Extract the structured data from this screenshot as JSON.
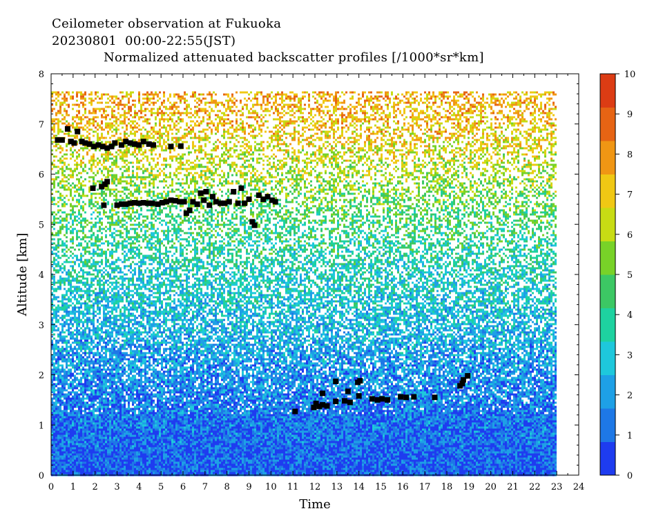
{
  "header": {
    "line1": "Ceilometer observation at Fukuoka",
    "line2": "20230801  00:00-22:55(JST)",
    "line3": "Normalized attenuated backscatter profiles [/1000*sr*km]"
  },
  "chart_data": {
    "type": "heatmap",
    "title": "Normalized attenuated backscatter profiles [/1000*sr*km]",
    "xlabel": "Time",
    "ylabel": "Altitude [km]",
    "xlim": [
      0,
      24
    ],
    "ylim": [
      0,
      8
    ],
    "x_ticks": [
      "0",
      "1",
      "2",
      "3",
      "4",
      "5",
      "6",
      "7",
      "8",
      "9",
      "10",
      "11",
      "12",
      "13",
      "14",
      "15",
      "16",
      "17",
      "18",
      "19",
      "20",
      "21",
      "22",
      "23",
      "24"
    ],
    "y_ticks": [
      "0",
      "1",
      "2",
      "3",
      "4",
      "5",
      "6",
      "7",
      "8"
    ],
    "data_coverage": {
      "time_end": 22.92,
      "altitude_top": 7.65
    },
    "colorbar": {
      "range": [
        0,
        10
      ],
      "ticks": [
        "0",
        "1",
        "2",
        "3",
        "4",
        "5",
        "6",
        "7",
        "8",
        "9",
        "10"
      ],
      "colors": [
        "#1e3cf0",
        "#1e78e6",
        "#1ea0e6",
        "#1ec8dc",
        "#1ed2a0",
        "#3cc864",
        "#78d228",
        "#c8dc14",
        "#f0c814",
        "#f09614",
        "#e66414",
        "#dc3c14"
      ]
    },
    "background_profile": {
      "altitude_km": [
        0.0,
        0.5,
        1.0,
        1.5,
        2.0,
        2.5,
        3.0,
        3.5,
        4.0,
        4.5,
        5.0,
        5.5,
        6.0,
        6.5,
        7.0,
        7.5
      ],
      "mean_value": [
        0.8,
        1.0,
        1.2,
        1.5,
        1.8,
        2.1,
        2.5,
        2.9,
        3.3,
        3.8,
        4.3,
        5.0,
        5.8,
        6.5,
        7.2,
        7.6
      ]
    },
    "cloud_base_points": [
      {
        "x": 0.3,
        "y": 6.68
      },
      {
        "x": 0.5,
        "y": 6.68
      },
      {
        "x": 0.75,
        "y": 6.9
      },
      {
        "x": 0.9,
        "y": 6.65
      },
      {
        "x": 1.05,
        "y": 6.62
      },
      {
        "x": 1.2,
        "y": 6.85
      },
      {
        "x": 1.4,
        "y": 6.65
      },
      {
        "x": 1.55,
        "y": 6.62
      },
      {
        "x": 1.75,
        "y": 6.6
      },
      {
        "x": 1.95,
        "y": 6.55
      },
      {
        "x": 2.15,
        "y": 6.58
      },
      {
        "x": 2.35,
        "y": 6.55
      },
      {
        "x": 2.55,
        "y": 6.52
      },
      {
        "x": 2.75,
        "y": 6.55
      },
      {
        "x": 2.9,
        "y": 6.62
      },
      {
        "x": 3.2,
        "y": 6.58
      },
      {
        "x": 3.4,
        "y": 6.65
      },
      {
        "x": 3.6,
        "y": 6.62
      },
      {
        "x": 3.8,
        "y": 6.6
      },
      {
        "x": 4.0,
        "y": 6.58
      },
      {
        "x": 4.2,
        "y": 6.65
      },
      {
        "x": 4.45,
        "y": 6.6
      },
      {
        "x": 4.65,
        "y": 6.58
      },
      {
        "x": 5.45,
        "y": 6.55
      },
      {
        "x": 5.9,
        "y": 6.56
      },
      {
        "x": 1.9,
        "y": 5.72
      },
      {
        "x": 2.3,
        "y": 5.75
      },
      {
        "x": 2.45,
        "y": 5.8
      },
      {
        "x": 2.55,
        "y": 5.85
      },
      {
        "x": 2.4,
        "y": 5.38
      },
      {
        "x": 3.0,
        "y": 5.38
      },
      {
        "x": 3.2,
        "y": 5.4
      },
      {
        "x": 3.4,
        "y": 5.4
      },
      {
        "x": 3.6,
        "y": 5.42
      },
      {
        "x": 3.8,
        "y": 5.43
      },
      {
        "x": 4.0,
        "y": 5.42
      },
      {
        "x": 4.2,
        "y": 5.43
      },
      {
        "x": 4.4,
        "y": 5.42
      },
      {
        "x": 4.6,
        "y": 5.42
      },
      {
        "x": 4.85,
        "y": 5.4
      },
      {
        "x": 5.05,
        "y": 5.43
      },
      {
        "x": 5.25,
        "y": 5.45
      },
      {
        "x": 5.45,
        "y": 5.48
      },
      {
        "x": 5.65,
        "y": 5.47
      },
      {
        "x": 5.85,
        "y": 5.45
      },
      {
        "x": 6.05,
        "y": 5.45
      },
      {
        "x": 6.15,
        "y": 5.22
      },
      {
        "x": 6.3,
        "y": 5.28
      },
      {
        "x": 6.45,
        "y": 5.45
      },
      {
        "x": 6.65,
        "y": 5.4
      },
      {
        "x": 6.8,
        "y": 5.62
      },
      {
        "x": 6.95,
        "y": 5.48
      },
      {
        "x": 7.05,
        "y": 5.65
      },
      {
        "x": 7.2,
        "y": 5.38
      },
      {
        "x": 7.35,
        "y": 5.55
      },
      {
        "x": 7.5,
        "y": 5.45
      },
      {
        "x": 7.7,
        "y": 5.42
      },
      {
        "x": 7.9,
        "y": 5.42
      },
      {
        "x": 8.1,
        "y": 5.45
      },
      {
        "x": 8.3,
        "y": 5.65
      },
      {
        "x": 8.5,
        "y": 5.42
      },
      {
        "x": 8.65,
        "y": 5.72
      },
      {
        "x": 8.8,
        "y": 5.42
      },
      {
        "x": 9.0,
        "y": 5.5
      },
      {
        "x": 9.15,
        "y": 5.05
      },
      {
        "x": 9.25,
        "y": 4.98
      },
      {
        "x": 9.45,
        "y": 5.58
      },
      {
        "x": 9.65,
        "y": 5.5
      },
      {
        "x": 9.85,
        "y": 5.55
      },
      {
        "x": 10.05,
        "y": 5.48
      },
      {
        "x": 10.2,
        "y": 5.45
      },
      {
        "x": 11.1,
        "y": 1.27
      },
      {
        "x": 11.95,
        "y": 1.35
      },
      {
        "x": 12.05,
        "y": 1.43
      },
      {
        "x": 12.2,
        "y": 1.37
      },
      {
        "x": 12.35,
        "y": 1.4
      },
      {
        "x": 12.35,
        "y": 1.63
      },
      {
        "x": 12.55,
        "y": 1.38
      },
      {
        "x": 12.95,
        "y": 1.47
      },
      {
        "x": 12.95,
        "y": 1.87
      },
      {
        "x": 13.35,
        "y": 1.48
      },
      {
        "x": 13.5,
        "y": 1.67
      },
      {
        "x": 13.6,
        "y": 1.45
      },
      {
        "x": 13.95,
        "y": 1.85
      },
      {
        "x": 14.0,
        "y": 1.58
      },
      {
        "x": 14.05,
        "y": 1.88
      },
      {
        "x": 14.6,
        "y": 1.52
      },
      {
        "x": 14.85,
        "y": 1.5
      },
      {
        "x": 15.05,
        "y": 1.52
      },
      {
        "x": 15.3,
        "y": 1.5
      },
      {
        "x": 15.9,
        "y": 1.56
      },
      {
        "x": 16.15,
        "y": 1.55
      },
      {
        "x": 16.5,
        "y": 1.56
      },
      {
        "x": 17.45,
        "y": 1.55
      },
      {
        "x": 18.6,
        "y": 1.78
      },
      {
        "x": 18.7,
        "y": 1.83
      },
      {
        "x": 18.75,
        "y": 1.9
      },
      {
        "x": 18.95,
        "y": 1.98
      }
    ]
  }
}
